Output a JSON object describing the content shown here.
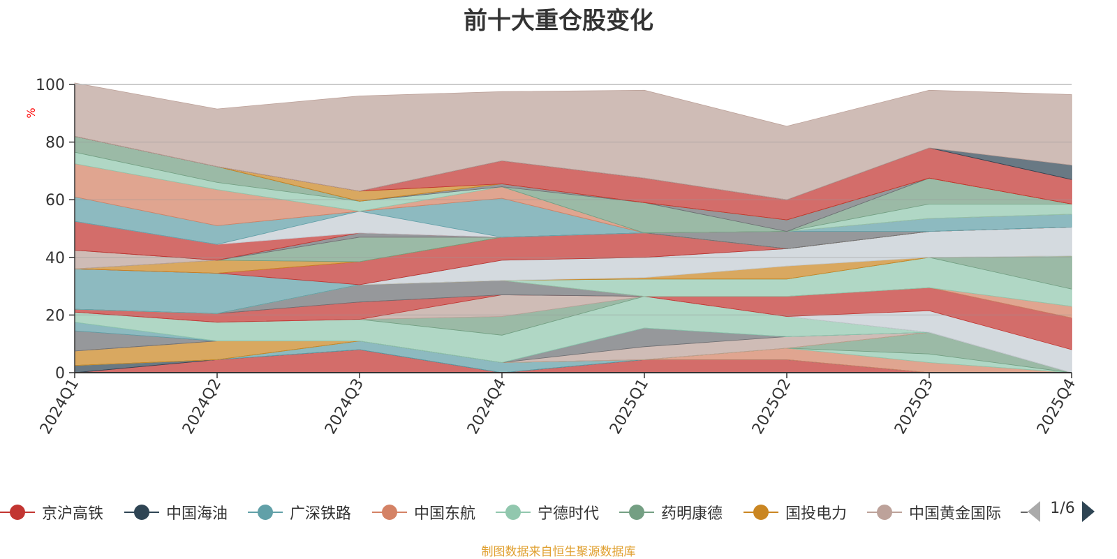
{
  "title": "前十大重仓股变化",
  "source_note": "制图数据来自恒生聚源数据库",
  "legend_page": "1/6",
  "colors": {
    "legend_text": "#333333",
    "axis": "#333333",
    "grid": "#cccccc",
    "ylabel": "#ff0000",
    "pager_active": "#2f4554",
    "pager_inactive": "#aaaaaa",
    "source_note": "#e0a030"
  },
  "chart_data": {
    "type": "area",
    "title": "前十大重仓股变化",
    "ylabel": "%",
    "ylim": [
      0,
      100
    ],
    "yticks": [
      0,
      20,
      40,
      60,
      80,
      100
    ],
    "grid": true,
    "legend_position": "bottom",
    "x": [
      "2024Q1",
      "2024Q2",
      "2024Q3",
      "2024Q4",
      "2025Q1",
      "2025Q2",
      "2025Q3",
      "2025Q4"
    ],
    "series": [
      {
        "name": "京沪高铁",
        "color": "#c23531",
        "values": [
          0.0,
          4.5,
          8.0,
          0.0,
          4.5,
          4.5,
          0.0,
          0.0
        ]
      },
      {
        "name": "中国海油",
        "color": "#2f4554",
        "values": [
          2.5,
          0.0,
          0.0,
          0.0,
          0.0,
          0.0,
          0.0,
          0.0
        ]
      },
      {
        "name": "广深铁路",
        "color": "#61a0a8",
        "values": [
          0.0,
          0.0,
          3.0,
          3.5,
          0.0,
          0.0,
          0.0,
          0.0
        ]
      },
      {
        "name": "中国东航",
        "color": "#d48265",
        "values": [
          0.0,
          0.0,
          0.0,
          0.0,
          0.0,
          4.0,
          3.5,
          0.0
        ]
      },
      {
        "name": "宁德时代",
        "color": "#91c7ae",
        "values": [
          0.0,
          0.0,
          0.0,
          0.0,
          0.0,
          0.0,
          3.0,
          0.0
        ]
      },
      {
        "name": "药明康德",
        "color": "#749f83",
        "values": [
          0.0,
          0.0,
          0.0,
          0.0,
          0.0,
          0.0,
          7.5,
          0.0
        ]
      },
      {
        "name": "国投电力",
        "color": "#ca8622",
        "values": [
          5.0,
          6.5,
          0.0,
          0.0,
          0.0,
          0.0,
          0.0,
          0.0
        ]
      },
      {
        "name": "中国黄金国际",
        "color": "#bda29a",
        "values": [
          0.0,
          0.0,
          0.0,
          0.0,
          4.5,
          4.0,
          0.0,
          0.0
        ]
      }
    ],
    "hidden_layers": [
      {
        "color": "#6e7074",
        "values": [
          7.0,
          0.0,
          0.0,
          0.0,
          6.5,
          0.0,
          0.0,
          0.0
        ]
      },
      {
        "color": "#61a0a8",
        "values": [
          3.0,
          0.0,
          0.0,
          0.0,
          0.0,
          0.0,
          0.0,
          0.0
        ]
      },
      {
        "color": "#91c7ae",
        "values": [
          3.5,
          6.5,
          7.5,
          9.5,
          11.0,
          7.0,
          0.0,
          0.0
        ]
      },
      {
        "color": "#749f83",
        "values": [
          0.0,
          0.0,
          0.0,
          6.5,
          0.0,
          0.0,
          0.0,
          0.0
        ]
      },
      {
        "color": "#bda29a",
        "values": [
          0.0,
          0.0,
          0.0,
          7.5,
          0.0,
          0.0,
          0.0,
          0.0
        ]
      },
      {
        "color": "#c4ccd3",
        "values": [
          0.0,
          0.0,
          0.0,
          0.0,
          0.0,
          0.0,
          7.5,
          8.0
        ]
      },
      {
        "color": "#c23531",
        "values": [
          1.0,
          3.0,
          6.0,
          0.0,
          0.0,
          7.0,
          8.0,
          11.0
        ]
      },
      {
        "color": "#6e7074",
        "values": [
          0.0,
          0.0,
          6.0,
          5.0,
          0.0,
          0.0,
          0.0,
          0.0
        ]
      },
      {
        "color": "#d48265",
        "values": [
          0.0,
          0.0,
          0.0,
          0.0,
          0.0,
          0.0,
          0.0,
          4.0
        ]
      },
      {
        "color": "#91c7ae",
        "values": [
          0.0,
          0.0,
          0.0,
          0.0,
          6.0,
          6.0,
          10.5,
          6.0
        ]
      },
      {
        "color": "#749f83",
        "values": [
          0.0,
          0.0,
          0.0,
          0.0,
          0.0,
          0.0,
          0.0,
          11.5
        ]
      },
      {
        "color": "#ca8622",
        "values": [
          0.0,
          0.0,
          0.0,
          0.0,
          0.5,
          4.5,
          0.0,
          0.0
        ]
      },
      {
        "color": "#c4ccd3",
        "values": [
          0.0,
          0.0,
          0.0,
          7.0,
          7.0,
          6.0,
          9.0,
          10.0
        ]
      },
      {
        "color": "#61a0a8",
        "values": [
          14.0,
          14.0,
          0.0,
          0.0,
          0.0,
          0.0,
          0.0,
          0.0
        ]
      },
      {
        "color": "#c23531",
        "values": [
          0.0,
          0.0,
          8.0,
          8.0,
          8.5,
          0.0,
          0.0,
          0.0
        ]
      },
      {
        "color": "#ca8622",
        "values": [
          0.0,
          4.5,
          0.0,
          0.0,
          0.0,
          0.0,
          0.0,
          0.0
        ]
      },
      {
        "color": "#749f83",
        "values": [
          0.0,
          0.0,
          8.5,
          0.0,
          0.0,
          0.0,
          0.0,
          0.0
        ]
      },
      {
        "color": "#bda29a",
        "values": [
          6.5,
          0.0,
          0.0,
          0.0,
          0.0,
          0.0,
          0.0,
          0.0
        ]
      },
      {
        "color": "#6e7074",
        "values": [
          0.0,
          0.0,
          1.5,
          0.0,
          0.0,
          6.0,
          0.0,
          0.0
        ]
      },
      {
        "color": "#c23531",
        "values": [
          10.0,
          5.5,
          0.0,
          0.0,
          0.0,
          0.0,
          0.0,
          0.0
        ]
      },
      {
        "color": "#c4ccd3",
        "values": [
          0.0,
          0.0,
          7.5,
          0.0,
          0.0,
          0.0,
          0.0,
          0.0
        ]
      },
      {
        "color": "#61a0a8",
        "values": [
          8.5,
          6.5,
          0.0,
          13.5,
          0.0,
          0.0,
          4.5,
          4.5
        ]
      },
      {
        "color": "#d48265",
        "values": [
          11.5,
          12.5,
          0.0,
          4.0,
          0.0,
          0.0,
          0.0,
          0.0
        ]
      },
      {
        "color": "#91c7ae",
        "values": [
          4.0,
          2.5,
          3.5,
          0.0,
          0.0,
          0.0,
          5.0,
          3.5
        ]
      },
      {
        "color": "#749f83",
        "values": [
          5.5,
          5.5,
          0.0,
          0.0,
          10.5,
          0.0,
          9.0,
          0.0
        ]
      },
      {
        "color": "#6e7074",
        "values": [
          0.0,
          0.0,
          0.0,
          1.0,
          0.0,
          4.0,
          0.0,
          0.0
        ]
      },
      {
        "color": "#ca8622",
        "values": [
          0.0,
          0.0,
          3.5,
          0.0,
          0.0,
          0.0,
          0.0,
          0.0
        ]
      },
      {
        "color": "#c23531",
        "values": [
          0.0,
          0.0,
          0.0,
          8.0,
          8.5,
          7.0,
          10.5,
          8.5
        ]
      },
      {
        "color": "#2f4554",
        "values": [
          0.0,
          0.0,
          0.0,
          0.0,
          0.0,
          0.0,
          0.0,
          5.0
        ]
      },
      {
        "color": "#bda29a",
        "values": [
          18.5,
          20.0,
          33.0,
          24.0,
          30.5,
          25.5,
          20.0,
          24.5
        ]
      }
    ]
  }
}
